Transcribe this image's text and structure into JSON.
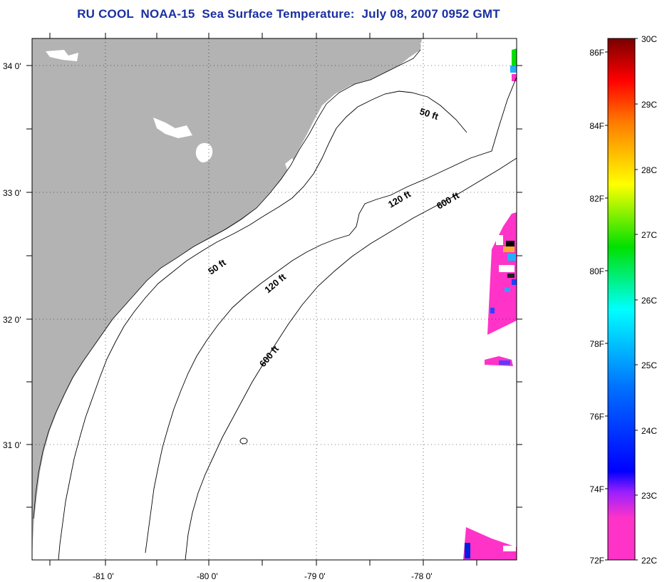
{
  "title": "RU COOL  NOAA-15  Sea Surface Temperature:  July 08, 2007 0952 GMT",
  "map": {
    "lat_ticks": [
      "34 0'",
      "33 0'",
      "32 0'",
      "31 0'"
    ],
    "lon_ticks": [
      "-81 0'",
      "-80 0'",
      "-79 0'",
      "-78 0'"
    ],
    "isobaths": [
      {
        "label": "50 ft"
      },
      {
        "label": "50 ft"
      },
      {
        "label": "120 ft"
      },
      {
        "label": "120 ft"
      },
      {
        "label": "600 ft"
      },
      {
        "label": "600 ft"
      }
    ],
    "colors": {
      "land": "#b3b3b3",
      "water": "#ffffff",
      "warm_sst": "#ff33c8"
    }
  },
  "colorbar": {
    "fahrenheit_labels": [
      "86F",
      "84F",
      "82F",
      "80F",
      "78F",
      "76F",
      "74F",
      "72F"
    ],
    "celsius_labels": [
      "30C",
      "29C",
      "28C",
      "27C",
      "26C",
      "25C",
      "24C",
      "23C",
      "22C"
    ],
    "stops": [
      "#7a0000",
      "#ff0000",
      "#ff7a00",
      "#ffff00",
      "#00e000",
      "#00ffff",
      "#0070ff",
      "#0000ff",
      "#9a20ff",
      "#ff33c8"
    ]
  }
}
